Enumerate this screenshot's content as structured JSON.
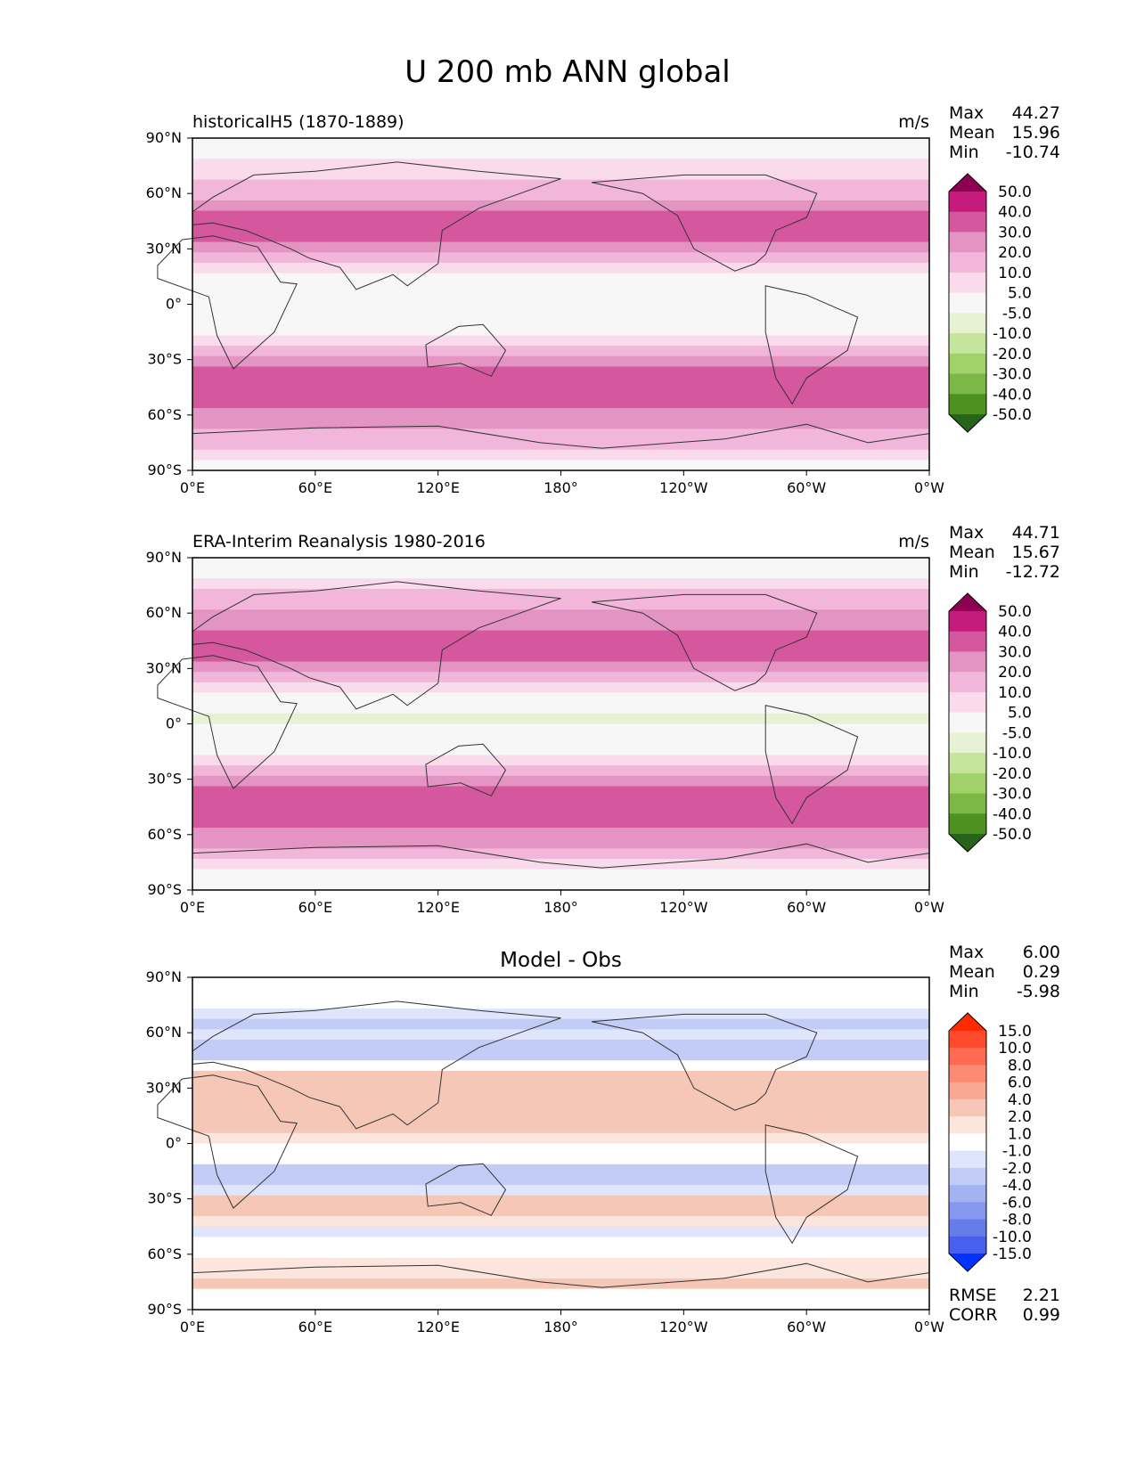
{
  "title": "U 200 mb ANN global",
  "chart_data": [
    {
      "type": "heatmap",
      "name": "test",
      "title_left": "historicalH5 (1870-1889)",
      "title_center": "",
      "units": "m/s",
      "stats": [
        {
          "label": "Max",
          "value": "44.27"
        },
        {
          "label": "Mean",
          "value": "15.96"
        },
        {
          "label": "Min",
          "value": "-10.74"
        }
      ],
      "extra_stats": [],
      "x_ticks": [
        "0°E",
        "60°E",
        "120°E",
        "180°",
        "120°W",
        "60°W",
        "0°W"
      ],
      "y_ticks": [
        "90°N",
        "60°N",
        "30°N",
        "0°",
        "30°S",
        "60°S",
        "90°S"
      ],
      "colorbar": {
        "labels": [
          "50.0",
          "40.0",
          "30.0",
          "20.0",
          "10.0",
          "5.0",
          "-5.0",
          "-10.0",
          "-20.0",
          "-30.0",
          "-40.0",
          "-50.0"
        ],
        "colors": [
          "#8e0152",
          "#c51b7d",
          "#d5589f",
          "#e494c3",
          "#f1b6da",
          "#f9dbec",
          "#f7f7f7",
          "#e6f2d3",
          "#c6e59c",
          "#a1d269",
          "#7bb846",
          "#4d9221",
          "#276419"
        ]
      },
      "zonal_profile": [
        0,
        2,
        5,
        9,
        14,
        18,
        24,
        30,
        33,
        30,
        22,
        14,
        9,
        3,
        -2,
        -4,
        -4,
        -2,
        2,
        8,
        15,
        24,
        32,
        37,
        36,
        33,
        28,
        24,
        16,
        10,
        5,
        2
      ]
    },
    {
      "type": "heatmap",
      "name": "reference",
      "title_left": "ERA-Interim Reanalysis 1980-2016",
      "title_center": "",
      "units": "m/s",
      "stats": [
        {
          "label": "Max",
          "value": "44.71"
        },
        {
          "label": "Mean",
          "value": "15.67"
        },
        {
          "label": "Min",
          "value": "-12.72"
        }
      ],
      "extra_stats": [],
      "x_ticks": [
        "0°E",
        "60°E",
        "120°E",
        "180°",
        "120°W",
        "60°W",
        "0°W"
      ],
      "y_ticks": [
        "90°N",
        "60°N",
        "30°N",
        "0°",
        "30°S",
        "60°S",
        "90°S"
      ],
      "colorbar": {
        "labels": [
          "50.0",
          "40.0",
          "30.0",
          "20.0",
          "10.0",
          "5.0",
          "-5.0",
          "-10.0",
          "-20.0",
          "-30.0",
          "-40.0",
          "-50.0"
        ],
        "colors": [
          "#8e0152",
          "#c51b7d",
          "#d5589f",
          "#e494c3",
          "#f1b6da",
          "#f9dbec",
          "#f7f7f7",
          "#e6f2d3",
          "#c6e59c",
          "#a1d269",
          "#7bb846",
          "#4d9221",
          "#276419"
        ]
      },
      "zonal_profile": [
        0,
        3,
        7,
        11,
        15,
        20,
        25,
        31,
        35,
        31,
        23,
        14,
        8,
        2,
        -3,
        -6,
        -5,
        -2,
        2,
        8,
        14,
        23,
        31,
        36,
        36,
        33,
        28,
        23,
        15,
        9,
        4,
        1
      ]
    },
    {
      "type": "heatmap",
      "name": "diff",
      "title_left": "",
      "title_center": "Model - Obs",
      "units": "",
      "stats": [
        {
          "label": "Max",
          "value": "6.00"
        },
        {
          "label": "Mean",
          "value": "0.29"
        },
        {
          "label": "Min",
          "value": "-5.98"
        }
      ],
      "extra_stats": [
        {
          "label": "RMSE",
          "value": "2.21"
        },
        {
          "label": "CORR",
          "value": "0.99"
        }
      ],
      "x_ticks": [
        "0°E",
        "60°E",
        "120°E",
        "180°",
        "120°W",
        "60°W",
        "0°W"
      ],
      "y_ticks": [
        "90°N",
        "60°N",
        "30°N",
        "0°",
        "30°S",
        "60°S",
        "90°S"
      ],
      "colorbar": {
        "labels": [
          "15.0",
          "10.0",
          "8.0",
          "6.0",
          "4.0",
          "2.0",
          "1.0",
          "-1.0",
          "-2.0",
          "-4.0",
          "-6.0",
          "-8.0",
          "-10.0",
          "-15.0"
        ],
        "colors": [
          "#ff2a00",
          "#ff4a2d",
          "#ff6b50",
          "#fd8a72",
          "#f9a993",
          "#f6c7b6",
          "#fbe5dd",
          "#ffffff",
          "#dfe5fb",
          "#c2ccf6",
          "#a3b2f1",
          "#8597ee",
          "#667de9",
          "#4a5ff0",
          "#0033ff"
        ]
      },
      "zonal_profile": [
        0,
        0,
        -1,
        -2,
        -3,
        -2,
        -4,
        -3,
        -1,
        2,
        3,
        3,
        2,
        3,
        2,
        1,
        -1,
        -1,
        -3,
        -4,
        -2,
        2,
        2,
        1,
        -2,
        -1,
        0,
        1,
        1,
        2,
        0,
        0
      ]
    }
  ]
}
